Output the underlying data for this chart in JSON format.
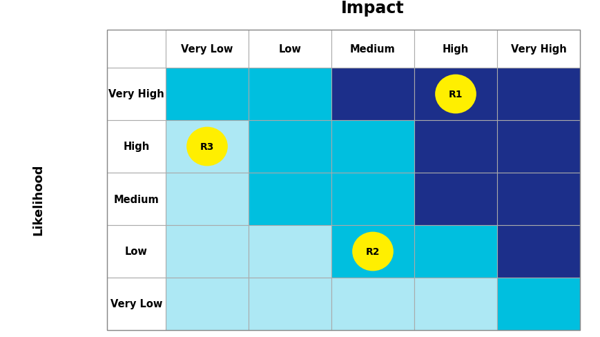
{
  "title": "Impact",
  "ylabel": "Likelihood",
  "impact_labels": [
    "Very Low",
    "Low",
    "Medium",
    "High",
    "Very High"
  ],
  "likelihood_labels": [
    "Very High",
    "High",
    "Medium",
    "Low",
    "Very Low"
  ],
  "cell_colors": [
    [
      "#00BFDF",
      "#00BFDF",
      "#1C2F8A",
      "#1C2F8A",
      "#1C2F8A"
    ],
    [
      "#ADE8F4",
      "#00BFDF",
      "#00BFDF",
      "#1C2F8A",
      "#1C2F8A"
    ],
    [
      "#ADE8F4",
      "#00BFDF",
      "#00BFDF",
      "#1C2F8A",
      "#1C2F8A"
    ],
    [
      "#ADE8F4",
      "#ADE8F4",
      "#00BFDF",
      "#00BFDF",
      "#1C2F8A"
    ],
    [
      "#ADE8F4",
      "#ADE8F4",
      "#ADE8F4",
      "#ADE8F4",
      "#00BFDF"
    ]
  ],
  "risks": [
    {
      "label": "R1",
      "row": 0,
      "col": 3
    },
    {
      "label": "R2",
      "row": 3,
      "col": 2
    },
    {
      "label": "R3",
      "row": 1,
      "col": 0
    }
  ],
  "risk_color": "#FFEF00",
  "risk_text_color": "#000000",
  "grid_color": "#AAAAAA",
  "title_fontsize": 17,
  "label_fontsize": 10.5,
  "header_fontsize": 10.5,
  "risk_fontsize": 10,
  "ylabel_fontsize": 13,
  "fig_width": 8.7,
  "fig_height": 4.89,
  "dpi": 100
}
